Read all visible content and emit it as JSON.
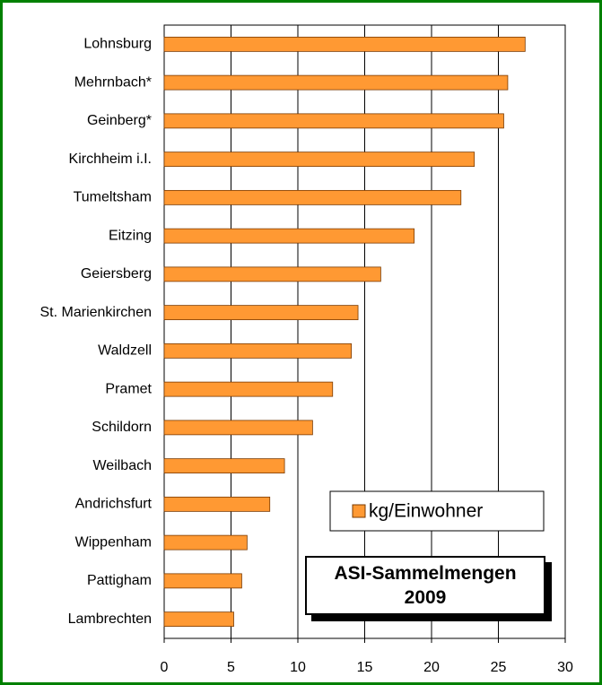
{
  "chart_data": {
    "type": "bar",
    "orientation": "horizontal",
    "title": "ASI-Sammelmengen 2009",
    "categories": [
      "Lohnsburg",
      "Mehrnbach*",
      "Geinberg*",
      "Kirchheim i.I.",
      "Tumeltsham",
      "Eitzing",
      "Geiersberg",
      "St. Marienkirchen",
      "Waldzell",
      "Pramet",
      "Schildorn",
      "Weilbach",
      "Andrichsfurt",
      "Wippenham",
      "Pattigham",
      "Lambrechten"
    ],
    "series": [
      {
        "name": "kg/Einwohner",
        "color": "#ff9933",
        "values": [
          27.0,
          25.7,
          25.4,
          23.2,
          22.2,
          18.7,
          16.2,
          14.5,
          14.0,
          12.6,
          11.1,
          9.0,
          7.9,
          6.2,
          5.8,
          5.2
        ]
      }
    ],
    "xlim": [
      0,
      30
    ],
    "xticks": [
      0,
      5,
      10,
      15,
      20,
      25,
      30
    ],
    "grid": true,
    "legend": "lower right"
  }
}
